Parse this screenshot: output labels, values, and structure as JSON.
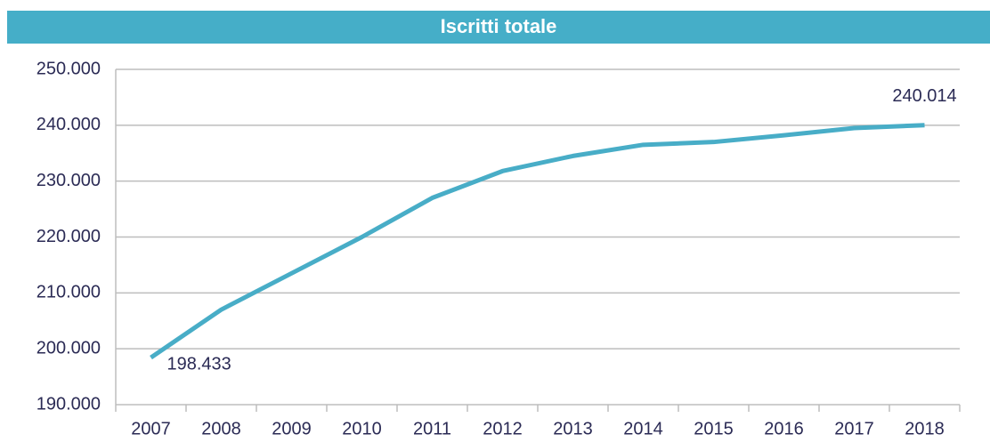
{
  "chart_data": {
    "type": "line",
    "title": "Iscritti totale",
    "categories": [
      "2007",
      "2008",
      "2009",
      "2010",
      "2011",
      "2012",
      "2013",
      "2014",
      "2015",
      "2016",
      "2017",
      "2018"
    ],
    "series": [
      {
        "color": "#48adc7",
        "values": [
          198433,
          207000,
          213500,
          220000,
          227000,
          231800,
          234500,
          236500,
          237000,
          238200,
          239500,
          240014
        ],
        "value_labels": [
          "198.433",
          null,
          null,
          null,
          null,
          null,
          null,
          null,
          null,
          null,
          null,
          "240.014"
        ]
      }
    ],
    "ylim": [
      190000,
      250000
    ],
    "yticks": [
      {
        "value": 190000,
        "label": "190.000"
      },
      {
        "value": 200000,
        "label": "200.000"
      },
      {
        "value": 210000,
        "label": "210.000"
      },
      {
        "value": 220000,
        "label": "220.000"
      },
      {
        "value": 230000,
        "label": "230.000"
      },
      {
        "value": 240000,
        "label": "240.000"
      },
      {
        "value": 250000,
        "label": "250.000"
      }
    ],
    "grid": true
  }
}
